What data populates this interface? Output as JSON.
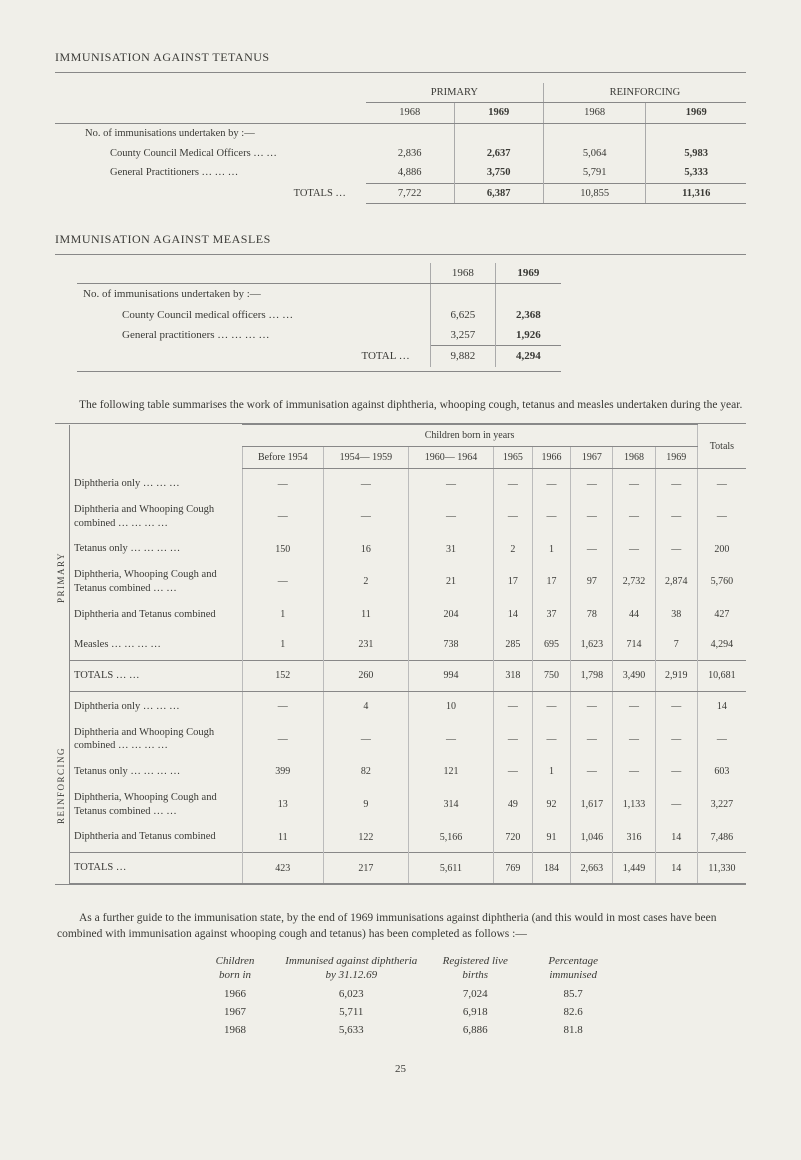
{
  "colors": {
    "background": "#f0efe9",
    "text": "#3a3a36",
    "rule": "#888888",
    "vline": "#aaaaaa"
  },
  "tetanus": {
    "title": "IMMUNISATION AGAINST TETANUS",
    "group_headers": [
      "PRIMARY",
      "REINFORCING"
    ],
    "years": [
      "1968",
      "1969",
      "1968",
      "1969"
    ],
    "rows": [
      {
        "label": "No. of immunisations undertaken by :—",
        "vals": [
          "",
          "",
          "",
          ""
        ]
      },
      {
        "label": "County Council Medical Officers  …     …",
        "vals": [
          "2,836",
          "2,637",
          "5,064",
          "5,983"
        ]
      },
      {
        "label": "General Practitioners          …     …     …",
        "vals": [
          "4,886",
          "3,750",
          "5,791",
          "5,333"
        ]
      }
    ],
    "total": {
      "label": "TOTALS   …",
      "vals": [
        "7,722",
        "6,387",
        "10,855",
        "11,316"
      ]
    }
  },
  "measles": {
    "title": "IMMUNISATION AGAINST MEASLES",
    "years": [
      "1968",
      "1969"
    ],
    "rows": [
      {
        "label": "No. of immunisations undertaken by :—",
        "vals": [
          "",
          ""
        ]
      },
      {
        "label": "County Council medical officers          …     …",
        "vals": [
          "6,625",
          "2,368"
        ]
      },
      {
        "label": "General practitioners       …       …       …       …",
        "vals": [
          "3,257",
          "1,926"
        ]
      }
    ],
    "total": {
      "label": "TOTAL     …",
      "vals": [
        "9,882",
        "4,294"
      ]
    }
  },
  "para1": "The following table summarises the work of immunisation against diphtheria, whooping cough, tetanus and measles undertaken during the year.",
  "summary": {
    "span_header": "Children born in years",
    "col_headers": [
      "Before 1954",
      "1954— 1959",
      "1960— 1964",
      "1965",
      "1966",
      "1967",
      "1968",
      "1969",
      "Totals"
    ],
    "side_labels": [
      "PRIMARY",
      "REINFORCING"
    ],
    "primary_rows": [
      {
        "label": "Diphtheria only       …       …       …",
        "vals": [
          "—",
          "—",
          "—",
          "—",
          "—",
          "—",
          "—",
          "—",
          "—"
        ]
      },
      {
        "label": "Diphtheria and Whooping Cough combined  …     …     …     …",
        "vals": [
          "—",
          "—",
          "—",
          "—",
          "—",
          "—",
          "—",
          "—",
          "—"
        ]
      },
      {
        "label": "Tetanus only …     …     …     …",
        "vals": [
          "150",
          "16",
          "31",
          "2",
          "1",
          "—",
          "—",
          "—",
          "200"
        ]
      },
      {
        "label": "Diphtheria, Whooping Cough and Tetanus combined          …     …",
        "vals": [
          "—",
          "2",
          "21",
          "17",
          "17",
          "97",
          "2,732",
          "2,874",
          "5,760"
        ]
      },
      {
        "label": "Diphtheria and Tetanus combined",
        "vals": [
          "1",
          "11",
          "204",
          "14",
          "37",
          "78",
          "44",
          "38",
          "427"
        ]
      },
      {
        "label": "Measles         …     …     …     …",
        "vals": [
          "1",
          "231",
          "738",
          "285",
          "695",
          "1,623",
          "714",
          "7",
          "4,294"
        ]
      }
    ],
    "primary_total": {
      "label": "TOTALS       …     …",
      "vals": [
        "152",
        "260",
        "994",
        "318",
        "750",
        "1,798",
        "3,490",
        "2,919",
        "10,681"
      ]
    },
    "reinf_rows": [
      {
        "label": "Diphtheria only       …       …       …",
        "vals": [
          "—",
          "4",
          "10",
          "—",
          "—",
          "—",
          "—",
          "—",
          "14"
        ]
      },
      {
        "label": "Diphtheria and Whooping Cough combined  …     …     …     …",
        "vals": [
          "—",
          "—",
          "—",
          "—",
          "—",
          "—",
          "—",
          "—",
          "—"
        ]
      },
      {
        "label": "Tetanus only …     …     …     …",
        "vals": [
          "399",
          "82",
          "121",
          "—",
          "1",
          "—",
          "—",
          "—",
          "603"
        ]
      },
      {
        "label": "Diphtheria, Whooping Cough and Tetanus combined          …     …",
        "vals": [
          "13",
          "9",
          "314",
          "49",
          "92",
          "1,617",
          "1,133",
          "—",
          "3,227"
        ]
      },
      {
        "label": "Diphtheria and Tetanus combined",
        "vals": [
          "11",
          "122",
          "5,166",
          "720",
          "91",
          "1,046",
          "316",
          "14",
          "7,486"
        ]
      }
    ],
    "reinf_total": {
      "label": "TOTALS       …",
      "vals": [
        "423",
        "217",
        "5,611",
        "769",
        "184",
        "2,663",
        "1,449",
        "14",
        "11,330"
      ]
    }
  },
  "para2": "As a further guide to the immunisation state, by the end of 1969 immunisations against diphtheria (and this would in most cases have been combined with immunisation against whooping cough and tetanus) has been completed as follows :—",
  "guide": {
    "headers": [
      "Children born in",
      "Immunised against diphtheria by 31.12.69",
      "Registered live births",
      "Percentage immunised"
    ],
    "rows": [
      [
        "1966",
        "6,023",
        "7,024",
        "85.7"
      ],
      [
        "1967",
        "5,711",
        "6,918",
        "82.6"
      ],
      [
        "1968",
        "5,633",
        "6,886",
        "81.8"
      ]
    ]
  },
  "page_number": "25"
}
